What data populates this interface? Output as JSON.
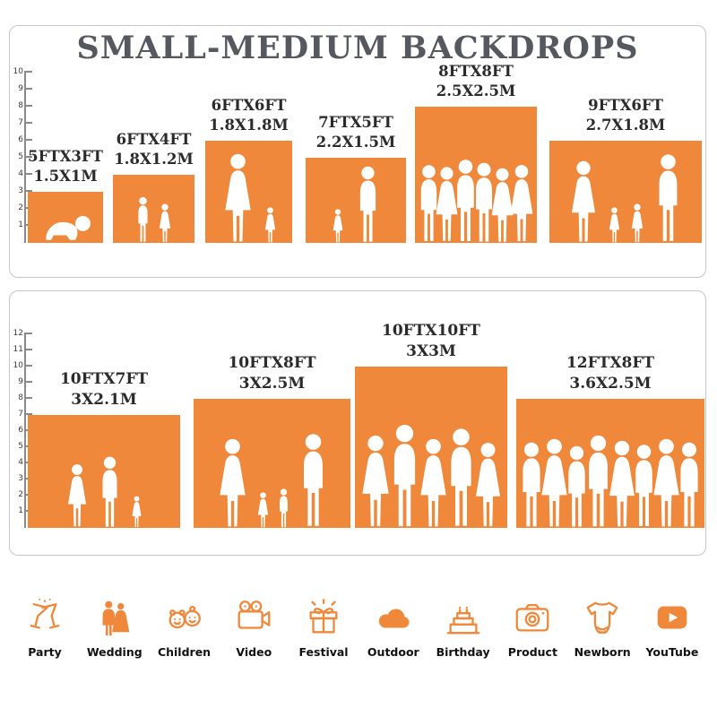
{
  "title": "SMALL-MEDIUM BACKDROPS",
  "colors": {
    "accent": "#F0883B",
    "title_text": "#55585E",
    "label_text": "#2B2B2B"
  },
  "top_panel": {
    "ruler": [
      "10",
      "9",
      "8",
      "7",
      "6",
      "5",
      "4",
      "3",
      "2",
      "1"
    ],
    "backdrops": [
      {
        "ft": "5FTX3FT",
        "m": "1.5X1M",
        "figures": [
          "crawling-baby"
        ]
      },
      {
        "ft": "6FTX4FT",
        "m": "1.8X1.2M",
        "figures": [
          "boy",
          "girl"
        ]
      },
      {
        "ft": "6FTX6FT",
        "m": "1.8X1.8M",
        "figures": [
          "woman-with-baby",
          "girl"
        ]
      },
      {
        "ft": "7FTX5FT",
        "m": "2.2X1.5M",
        "figures": [
          "girl",
          "man"
        ]
      },
      {
        "ft": "8FTX8FT",
        "m": "2.5X2.5M",
        "figures": [
          "man",
          "woman",
          "man",
          "man",
          "woman",
          "woman"
        ]
      },
      {
        "ft": "9FTX6FT",
        "m": "2.7X1.8M",
        "figures": [
          "woman",
          "girl",
          "girl",
          "man"
        ]
      }
    ]
  },
  "bottom_panel": {
    "ruler": [
      "12",
      "11",
      "10",
      "9",
      "8",
      "7",
      "6",
      "5",
      "4",
      "3",
      "2",
      "1"
    ],
    "backdrops": [
      {
        "ft": "10FTX7FT",
        "m": "3X2.1M",
        "figures": [
          "woman",
          "man",
          "girl"
        ]
      },
      {
        "ft": "10FTX8FT",
        "m": "3X2.5M",
        "figures": [
          "woman",
          "girl",
          "boy",
          "man"
        ]
      },
      {
        "ft": "10FTX10FT",
        "m": "3X3M",
        "figures": [
          "woman",
          "man",
          "woman",
          "man",
          "woman"
        ]
      },
      {
        "ft": "12FTX8FT",
        "m": "3.6X2.5M",
        "figures": [
          "man",
          "woman",
          "man",
          "man",
          "woman",
          "man",
          "woman",
          "man"
        ]
      }
    ]
  },
  "categories": [
    {
      "label": "Party",
      "icon": "party-icon"
    },
    {
      "label": "Wedding",
      "icon": "wedding-icon"
    },
    {
      "label": "Children",
      "icon": "children-icon"
    },
    {
      "label": "Video",
      "icon": "video-icon"
    },
    {
      "label": "Festival",
      "icon": "festival-icon"
    },
    {
      "label": "Outdoor",
      "icon": "outdoor-icon"
    },
    {
      "label": "Birthday",
      "icon": "birthday-icon"
    },
    {
      "label": "Product",
      "icon": "product-icon"
    },
    {
      "label": "Newborn",
      "icon": "newborn-icon"
    },
    {
      "label": "YouTube",
      "icon": "youtube-icon"
    }
  ]
}
